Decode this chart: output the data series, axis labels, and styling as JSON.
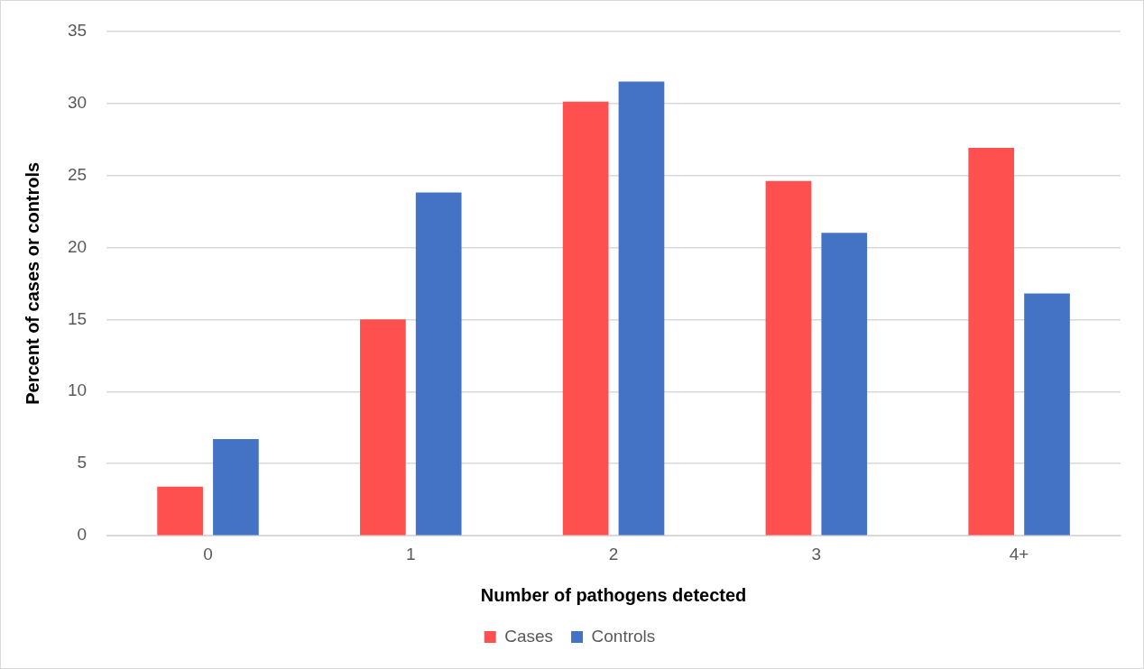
{
  "chart_data": {
    "type": "bar",
    "xlabel": "Number of pathogens detected",
    "ylabel": "Percent of cases or controls",
    "categories": [
      "0",
      "1",
      "2",
      "3",
      "4+"
    ],
    "series": [
      {
        "name": "Cases",
        "color": "#ff5050",
        "values": [
          3.4,
          15.0,
          30.1,
          24.6,
          26.9
        ]
      },
      {
        "name": "Controls",
        "color": "#4472c4",
        "values": [
          6.7,
          23.8,
          31.5,
          21.0,
          16.8
        ]
      }
    ],
    "ylim": [
      0,
      35
    ],
    "yticks": [
      0,
      5,
      10,
      15,
      20,
      25,
      30,
      35
    ],
    "grid": "y",
    "legend": "bottom"
  }
}
